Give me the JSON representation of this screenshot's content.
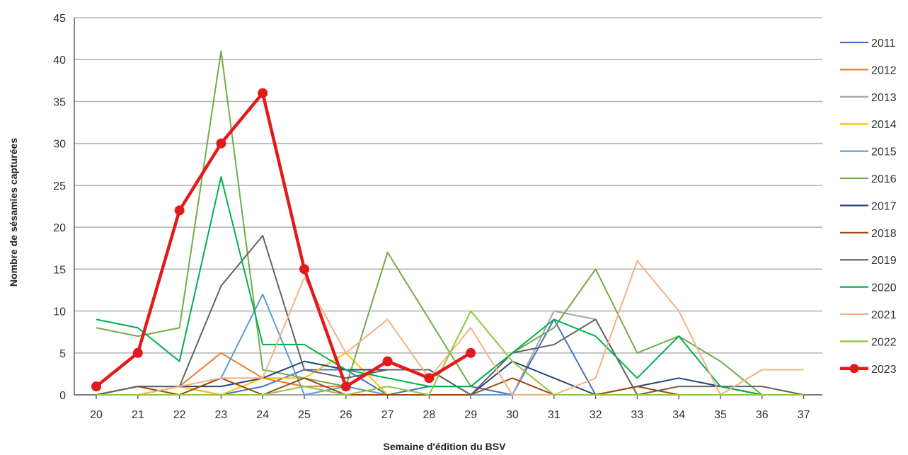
{
  "chart_data": {
    "type": "line",
    "title": "",
    "xlabel": "Semaine d'édition du BSV",
    "ylabel": "Nombre de sésamies capturées",
    "ylim": [
      0,
      45
    ],
    "yticks": [
      0,
      5,
      10,
      15,
      20,
      25,
      30,
      35,
      40,
      45
    ],
    "categories": [
      "20",
      "21",
      "22",
      "23",
      "24",
      "25",
      "26",
      "27",
      "28",
      "29",
      "30",
      "31",
      "32",
      "33",
      "34",
      "35",
      "36",
      "37"
    ],
    "grid": true,
    "legend_position": "right",
    "series": [
      {
        "name": "2011",
        "color": "#4472C4",
        "values": [
          0,
          0,
          1,
          0,
          1,
          3,
          3,
          0,
          1,
          1,
          0,
          9,
          0,
          0,
          0,
          0,
          0,
          0
        ]
      },
      {
        "name": "2012",
        "color": "#ED7D31",
        "values": [
          0,
          0,
          1,
          5,
          2,
          1,
          1,
          0,
          0,
          0,
          0,
          0,
          0,
          0,
          0,
          0,
          0,
          0
        ]
      },
      {
        "name": "2013",
        "color": "#A5A5A5",
        "values": [
          0,
          0,
          0,
          0,
          0,
          0,
          0,
          0,
          0,
          0,
          0,
          10,
          9,
          0,
          0,
          0,
          0,
          0
        ]
      },
      {
        "name": "2014",
        "color": "#FFC000",
        "values": [
          0,
          0,
          1,
          0,
          2,
          2,
          5,
          0,
          0,
          0,
          0,
          0,
          0,
          0,
          0,
          0,
          0,
          0
        ]
      },
      {
        "name": "2015",
        "color": "#5B9BD5",
        "values": [
          0,
          0,
          0,
          2,
          12,
          0,
          1,
          0,
          0,
          0,
          0,
          0,
          0,
          0,
          0,
          0,
          0,
          0
        ]
      },
      {
        "name": "2016",
        "color": "#70AD47",
        "values": [
          8,
          7,
          8,
          41,
          3,
          2,
          1,
          17,
          9,
          1,
          5,
          8,
          15,
          5,
          7,
          4,
          0,
          0
        ]
      },
      {
        "name": "2017",
        "color": "#264478",
        "values": [
          0,
          1,
          1,
          1,
          2,
          4,
          3,
          3,
          3,
          0,
          4,
          2,
          0,
          1,
          2,
          1,
          0,
          0
        ]
      },
      {
        "name": "2018",
        "color": "#9E480E",
        "values": [
          0,
          1,
          0,
          2,
          0,
          2,
          0,
          0,
          0,
          0,
          2,
          0,
          0,
          1,
          0,
          0,
          0,
          0
        ]
      },
      {
        "name": "2019",
        "color": "#636363",
        "values": [
          0,
          1,
          1,
          13,
          19,
          3,
          2,
          3,
          3,
          0,
          5,
          6,
          9,
          0,
          1,
          1,
          1,
          0
        ]
      },
      {
        "name": "2020",
        "color": "#00B050",
        "values": [
          9,
          8,
          4,
          26,
          6,
          6,
          3,
          2,
          1,
          1,
          5,
          9,
          7,
          2,
          7,
          1,
          0,
          0
        ]
      },
      {
        "name": "2021",
        "color": "#F4B183",
        "values": [
          0,
          0,
          1,
          2,
          2,
          14,
          5,
          9,
          2,
          8,
          0,
          0,
          2,
          16,
          10,
          0,
          3,
          3
        ]
      },
      {
        "name": "2022",
        "color": "#8FC93A",
        "values": [
          0,
          0,
          0,
          0,
          0,
          1,
          0,
          1,
          0,
          10,
          4,
          0,
          0,
          0,
          0,
          0,
          0,
          0
        ]
      },
      {
        "name": "2023",
        "color": "#E31A1C",
        "values": [
          1,
          5,
          22,
          30,
          36,
          15,
          1,
          4,
          2,
          5,
          null,
          null,
          null,
          null,
          null,
          null,
          null,
          null
        ],
        "markers": true
      }
    ]
  }
}
